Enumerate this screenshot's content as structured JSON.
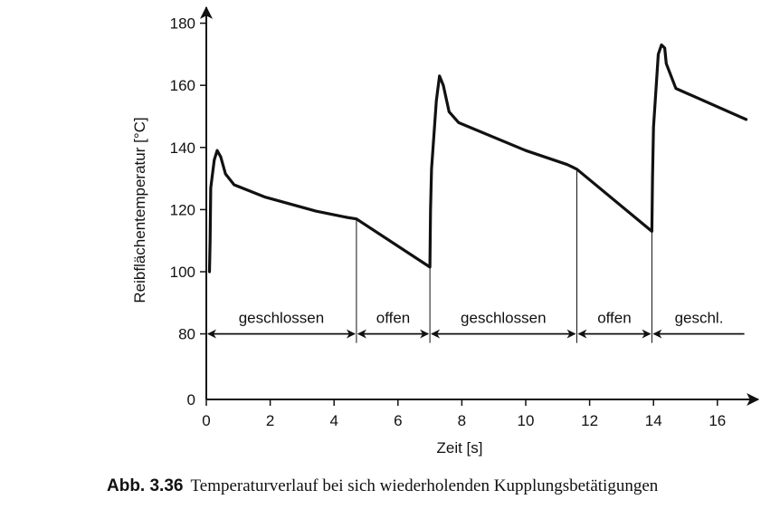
{
  "chart_data": {
    "type": "line",
    "xlabel": "Zeit [s]",
    "ylabel": "Reibflächentemperatur [°C]",
    "xlim": [
      0,
      17
    ],
    "ylim": [
      0,
      180
    ],
    "x_ticks": [
      0,
      2,
      4,
      6,
      8,
      10,
      12,
      14,
      16
    ],
    "y_ticks": [
      0,
      80,
      100,
      120,
      140,
      160,
      180
    ],
    "y_axis_break": "between 0 and 80",
    "grid": false,
    "series": [
      {
        "color": "#111111",
        "points": [
          [
            0.1,
            100
          ],
          [
            0.12,
            110
          ],
          [
            0.14,
            127
          ],
          [
            0.25,
            136
          ],
          [
            0.34,
            139
          ],
          [
            0.45,
            137
          ],
          [
            0.6,
            131.5
          ],
          [
            0.87,
            128
          ],
          [
            1.85,
            124
          ],
          [
            3.43,
            119.5
          ],
          [
            4.4,
            117.5
          ],
          [
            4.7,
            117
          ],
          [
            7.0,
            101.5
          ],
          [
            7.02,
            120
          ],
          [
            7.05,
            133
          ],
          [
            7.2,
            155
          ],
          [
            7.3,
            163
          ],
          [
            7.42,
            160
          ],
          [
            7.6,
            151.5
          ],
          [
            7.9,
            148
          ],
          [
            10.0,
            139
          ],
          [
            11.3,
            134.5
          ],
          [
            11.6,
            133
          ],
          [
            13.95,
            113
          ],
          [
            13.97,
            130
          ],
          [
            14.0,
            146.5
          ],
          [
            14.15,
            170
          ],
          [
            14.25,
            173
          ],
          [
            14.35,
            172
          ],
          [
            14.4,
            167
          ],
          [
            14.7,
            159
          ],
          [
            16.9,
            149
          ]
        ]
      }
    ],
    "phases": [
      {
        "label": "geschlossen",
        "start": 0,
        "end": 4.7,
        "arrows": "both"
      },
      {
        "label": "offen",
        "start": 4.7,
        "end": 7.0,
        "arrows": "both"
      },
      {
        "label": "geschlossen",
        "start": 7.0,
        "end": 11.6,
        "arrows": "both"
      },
      {
        "label": "offen",
        "start": 11.6,
        "end": 13.95,
        "arrows": "both"
      },
      {
        "label": "geschl.",
        "start": 13.95,
        "end": 16.9,
        "arrows": "left"
      }
    ],
    "phase_level": 80
  },
  "caption": {
    "number": "Abb. 3.36",
    "text": "Temperaturverlauf bei sich wiederholenden Kupplungsbetätigungen"
  }
}
